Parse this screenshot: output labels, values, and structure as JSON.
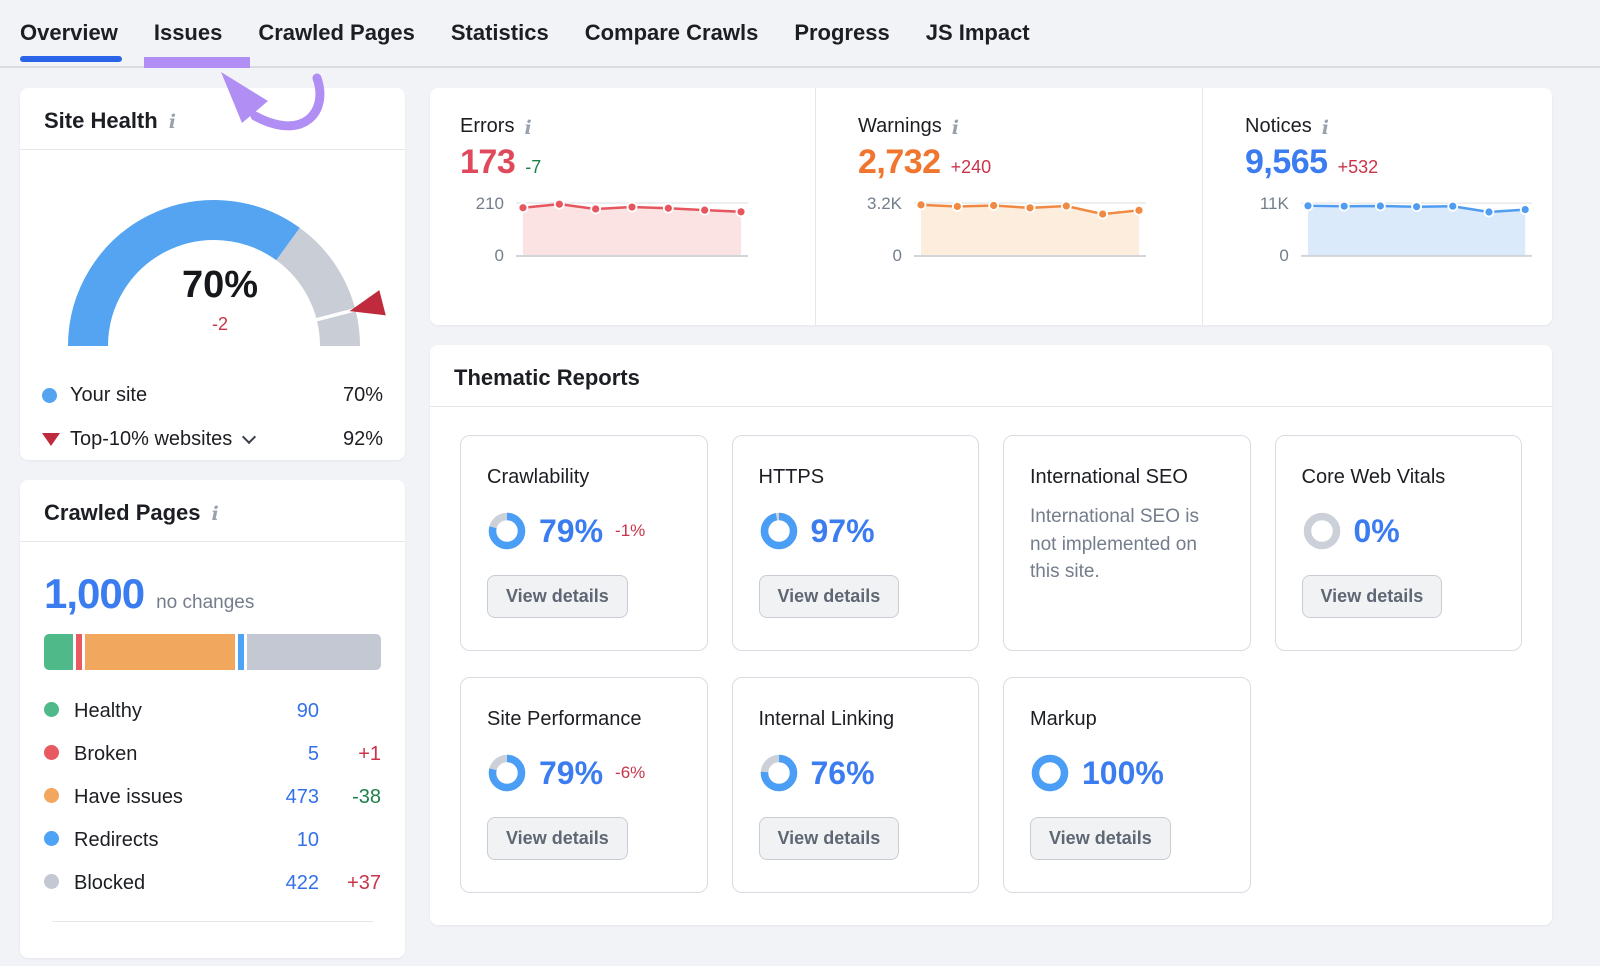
{
  "colors": {
    "page_bg": "#f1f3f7",
    "panel_bg": "#ffffff",
    "divider": "#e5e7eb",
    "nav_divider": "#d9dbe0",
    "text_dark": "#1c1e23",
    "text_muted": "#747d8c",
    "blue_link": "#3471e8",
    "blue_value": "#3b7cf0",
    "sky_blue": "#54a4f2",
    "red_value": "#e0485c",
    "orange_value": "#f0762f",
    "delta_red": "#c9344a",
    "delta_green": "#1e7f49",
    "purple": "#b18ef4",
    "tab_active": "#2a62e8",
    "gauge_track": "#c9cdd5",
    "marker_red": "#bf2b3d",
    "btn_bg": "#f1f2f4",
    "btn_border": "#c9cdd3",
    "btn_text": "#5f6774",
    "card_border": "#d9dce2",
    "ring_track": "#ccd1d9",
    "ring_blue": "#4a9ef5"
  },
  "glyphs": {
    "info": "i"
  },
  "nav": {
    "tabs": [
      {
        "label": "Overview",
        "active": true
      },
      {
        "label": "Issues",
        "highlighted": true
      },
      {
        "label": "Crawled Pages"
      },
      {
        "label": "Statistics"
      },
      {
        "label": "Compare Crawls"
      },
      {
        "label": "Progress"
      },
      {
        "label": "JS Impact"
      }
    ]
  },
  "site_health": {
    "title": "Site Health",
    "gauge": {
      "value": 70,
      "value_label": "70%",
      "delta": "-2",
      "benchmark": 92
    },
    "legend": [
      {
        "label": "Your site",
        "value": "70%"
      },
      {
        "label": "Top-10% websites",
        "value": "92%"
      }
    ]
  },
  "crawled_pages": {
    "title": "Crawled Pages",
    "total": "1,000",
    "note": "no changes",
    "segments": [
      {
        "label": "Healthy",
        "value": 90,
        "value_label": "90",
        "delta": "",
        "delta_dir": "",
        "color": "#50b989"
      },
      {
        "label": "Broken",
        "value": 5,
        "value_label": "5",
        "delta": "+1",
        "delta_dir": "bad",
        "color": "#e85a5f"
      },
      {
        "label": "Have issues",
        "value": 473,
        "value_label": "473",
        "delta": "-38",
        "delta_dir": "good",
        "color": "#f2a75e"
      },
      {
        "label": "Redirects",
        "value": 10,
        "value_label": "10",
        "delta": "",
        "delta_dir": "",
        "color": "#4da3f5"
      },
      {
        "label": "Blocked",
        "value": 422,
        "value_label": "422",
        "delta": "+37",
        "delta_dir": "bad",
        "color": "#c3c8d2"
      }
    ]
  },
  "issues_summary": {
    "cards": [
      {
        "key": "errors",
        "label": "Errors",
        "value": "173",
        "delta": "-7",
        "delta_dir": "good",
        "value_color": "#e0485c",
        "line_color": "#e5565e",
        "fill_color": "#fbe2e3",
        "axis_max": "210",
        "axis_min": "0",
        "max": 210,
        "points": [
          190,
          205,
          185,
          193,
          188,
          180,
          173
        ]
      },
      {
        "key": "warnings",
        "label": "Warnings",
        "value": "2,732",
        "delta": "+240",
        "delta_dir": "bad",
        "value_color": "#f0762f",
        "line_color": "#f08a43",
        "fill_color": "#fdeddd",
        "axis_max": "3.2K",
        "axis_min": "0",
        "max": 3200,
        "points": [
          3080,
          2980,
          3040,
          2890,
          3010,
          2492,
          2732
        ]
      },
      {
        "key": "notices",
        "label": "Notices",
        "value": "9,565",
        "delta": "+532",
        "delta_dir": "bad",
        "value_color": "#3b7cf0",
        "line_color": "#4f9cf0",
        "fill_color": "#daeafa",
        "axis_max": "11K",
        "axis_min": "0",
        "max": 11000,
        "points": [
          10400,
          10310,
          10360,
          10200,
          10310,
          9033,
          9565
        ]
      }
    ]
  },
  "thematic": {
    "title": "Thematic Reports",
    "view_details_label": "View details",
    "cards": [
      {
        "title": "Crawlability",
        "pct": 79,
        "pct_label": "79%",
        "delta": "-1%",
        "button": true
      },
      {
        "title": "HTTPS",
        "pct": 97,
        "pct_label": "97%",
        "delta": "",
        "button": true
      },
      {
        "title": "International SEO",
        "pct": null,
        "description": "International SEO is not implemented on this site.",
        "button": false
      },
      {
        "title": "Core Web Vitals",
        "pct": 0,
        "pct_label": "0%",
        "delta": "",
        "button": true
      },
      {
        "title": "Site Performance",
        "pct": 79,
        "pct_label": "79%",
        "delta": "-6%",
        "button": true
      },
      {
        "title": "Internal Linking",
        "pct": 76,
        "pct_label": "76%",
        "delta": "",
        "button": true
      },
      {
        "title": "Markup",
        "pct": 100,
        "pct_label": "100%",
        "delta": "",
        "button": true
      }
    ]
  }
}
